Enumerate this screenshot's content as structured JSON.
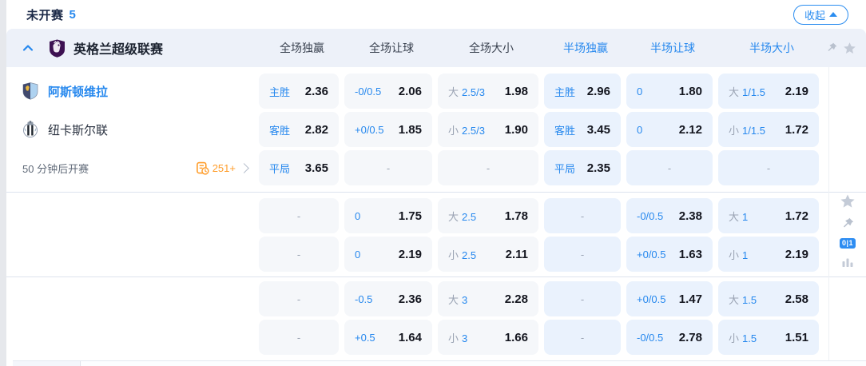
{
  "topbar": {
    "status_label": "未开赛",
    "status_count": "5",
    "collapse_label": "收起"
  },
  "section": {
    "league_name": "英格兰超级联赛"
  },
  "columns": [
    {
      "label": "全场独赢",
      "half": false
    },
    {
      "label": "全场让球",
      "half": false
    },
    {
      "label": "全场大小",
      "half": false
    },
    {
      "label": "半场独赢",
      "half": true
    },
    {
      "label": "半场让球",
      "half": true
    },
    {
      "label": "半场大小",
      "half": true
    }
  ],
  "match": {
    "home_name": "阿斯顿维拉",
    "away_name": "纽卡斯尔联",
    "start_time_text": "50 分钟后开赛",
    "more_markets_count": "251+"
  },
  "side": {
    "badge_label": "0|1"
  },
  "colors": {
    "accent_blue": "#2688ee",
    "cell_gray_bg": "#f5f7fa",
    "cell_blue_bg": "#eaf2fd",
    "header_bg": "#edf1f9",
    "value_text": "#14161f",
    "muted_gray": "#9aa3b3",
    "orange": "#ff9d2b"
  },
  "rows": [
    {
      "cells": [
        {
          "label": "主胜",
          "value": "2.36"
        },
        {
          "label": "-0/0.5",
          "value": "2.06"
        },
        {
          "prefix": "大",
          "label": "2.5/3",
          "value": "1.98"
        },
        {
          "label": "主胜",
          "value": "2.96"
        },
        {
          "label": "0",
          "value": "1.80"
        },
        {
          "prefix": "大",
          "label": "1/1.5",
          "value": "2.19"
        }
      ]
    },
    {
      "cells": [
        {
          "label": "客胜",
          "value": "2.82"
        },
        {
          "label": "+0/0.5",
          "value": "1.85"
        },
        {
          "prefix": "小",
          "label": "2.5/3",
          "value": "1.90"
        },
        {
          "label": "客胜",
          "value": "3.45"
        },
        {
          "label": "0",
          "value": "2.12"
        },
        {
          "prefix": "小",
          "label": "1/1.5",
          "value": "1.72"
        }
      ]
    },
    {
      "cells": [
        {
          "label": "平局",
          "value": "3.65"
        },
        {
          "label": "-"
        },
        {
          "label": "-"
        },
        {
          "label": "平局",
          "value": "2.35"
        },
        {
          "label": "-"
        },
        {
          "label": "-"
        }
      ]
    },
    {
      "cells": [
        {
          "label": "-"
        },
        {
          "label": "0",
          "value": "1.75"
        },
        {
          "prefix": "大",
          "label": "2.5",
          "value": "1.78"
        },
        {
          "label": "-"
        },
        {
          "label": "-0/0.5",
          "value": "2.38"
        },
        {
          "prefix": "大",
          "label": "1",
          "value": "1.72"
        }
      ]
    },
    {
      "cells": [
        {
          "label": "-"
        },
        {
          "label": "0",
          "value": "2.19"
        },
        {
          "prefix": "小",
          "label": "2.5",
          "value": "2.11"
        },
        {
          "label": "-"
        },
        {
          "label": "+0/0.5",
          "value": "1.63"
        },
        {
          "prefix": "小",
          "label": "1",
          "value": "2.19"
        }
      ]
    },
    {
      "cells": [
        {
          "label": "-"
        },
        {
          "label": "-0.5",
          "value": "2.36"
        },
        {
          "prefix": "大",
          "label": "3",
          "value": "2.28"
        },
        {
          "label": "-"
        },
        {
          "label": "+0/0.5",
          "value": "1.47"
        },
        {
          "prefix": "大",
          "label": "1.5",
          "value": "2.58"
        }
      ]
    },
    {
      "cells": [
        {
          "label": "-"
        },
        {
          "label": "+0.5",
          "value": "1.64"
        },
        {
          "prefix": "小",
          "label": "3",
          "value": "1.66"
        },
        {
          "label": "-"
        },
        {
          "label": "-0/0.5",
          "value": "2.78"
        },
        {
          "prefix": "小",
          "label": "1.5",
          "value": "1.51"
        }
      ]
    }
  ]
}
